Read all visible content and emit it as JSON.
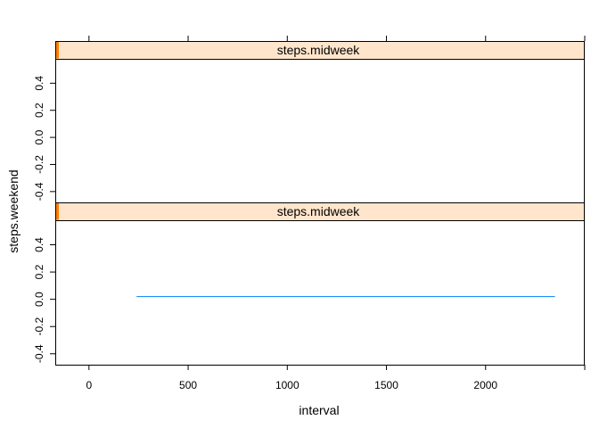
{
  "chart_data": {
    "type": "line",
    "title": "",
    "xlabel": "interval",
    "ylabel": "steps.weekend",
    "xlim": [
      -170,
      2500
    ],
    "xticks": [
      0,
      500,
      1000,
      1500,
      2000
    ],
    "xtick_labels": [
      "0",
      "500",
      "1000",
      "1500",
      "2000"
    ],
    "ylim": [
      -0.48,
      0.58
    ],
    "yticks": [
      -0.4,
      -0.2,
      0.0,
      0.2,
      0.4
    ],
    "ytick_labels": [
      "-0.4",
      "-0.2",
      "0.0",
      "0.2",
      "0.4"
    ],
    "grid": false,
    "legend": "none",
    "strip_bg_color": "#ffe5cc",
    "strip_marker_color": "#ff7f00",
    "line_color": "#0080ff",
    "panels": [
      {
        "strip_label": "steps.midweek",
        "series": []
      },
      {
        "strip_label": "steps.midweek",
        "series": [
          {
            "x": [
              240,
              2350
            ],
            "y": [
              0.02,
              0.02
            ]
          }
        ]
      }
    ]
  }
}
